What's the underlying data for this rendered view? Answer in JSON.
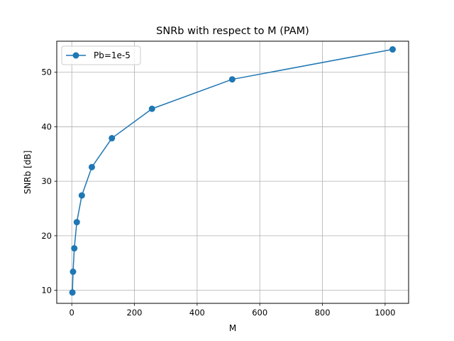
{
  "chart_data": {
    "type": "line",
    "title": "SNRb with respect to M (PAM)",
    "xlabel": "M",
    "ylabel": "SNRb [dB]",
    "xlim": [
      -48,
      1075
    ],
    "ylim": [
      7.6,
      55.7
    ],
    "xticks": [
      0,
      200,
      400,
      600,
      800,
      1000
    ],
    "yticks": [
      10,
      20,
      30,
      40,
      50
    ],
    "grid": true,
    "legend_position": "top-left",
    "series": [
      {
        "name": "Pb=1e-5",
        "color": "#1f77b4",
        "marker": "circle",
        "x": [
          2,
          4,
          8,
          16,
          32,
          64,
          128,
          256,
          512,
          1024
        ],
        "y": [
          9.6,
          13.4,
          17.7,
          22.5,
          27.4,
          32.6,
          37.9,
          43.3,
          48.7,
          54.2
        ]
      }
    ]
  }
}
